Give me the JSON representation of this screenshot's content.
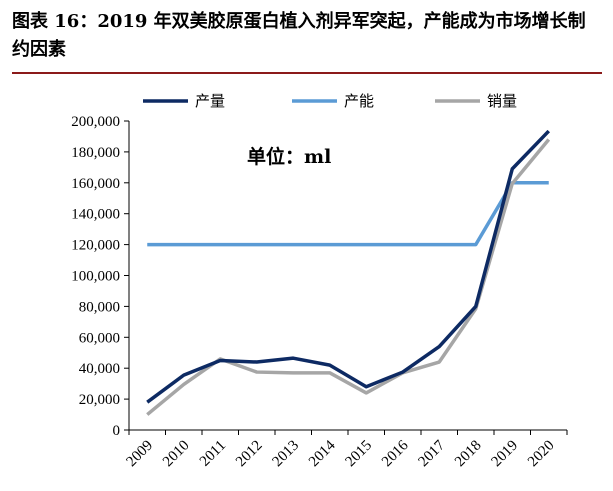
{
  "title": "图表 16：2019 年双美胶原蛋白植入剂异军突起，产能成为市场增长制约因素",
  "chart_data": {
    "type": "line",
    "annotation": "单位：ml",
    "categories": [
      "2009",
      "2010",
      "2011",
      "2012",
      "2013",
      "2014",
      "2015",
      "2016",
      "2017",
      "2018",
      "2019",
      "2020"
    ],
    "ylim": [
      0,
      200000
    ],
    "yticks": [
      "0",
      "20,000",
      "40,000",
      "60,000",
      "80,000",
      "100,000",
      "120,000",
      "140,000",
      "160,000",
      "180,000",
      "200,000"
    ],
    "grid": false,
    "legend": "top",
    "series": [
      {
        "name": "产量",
        "color": "#0d2a63",
        "values": [
          18000,
          35500,
          45000,
          44000,
          46500,
          42000,
          28000,
          37500,
          54000,
          80000,
          169000,
          193500
        ]
      },
      {
        "name": "产能",
        "color": "#5b9bd5",
        "values": [
          120000,
          120000,
          120000,
          120000,
          120000,
          120000,
          120000,
          120000,
          120000,
          120000,
          160000,
          160000
        ]
      },
      {
        "name": "销量",
        "color": "#a6a6a6",
        "values": [
          10000,
          29500,
          46000,
          37500,
          37000,
          37000,
          24000,
          37000,
          44000,
          78500,
          159500,
          188000
        ]
      }
    ]
  }
}
